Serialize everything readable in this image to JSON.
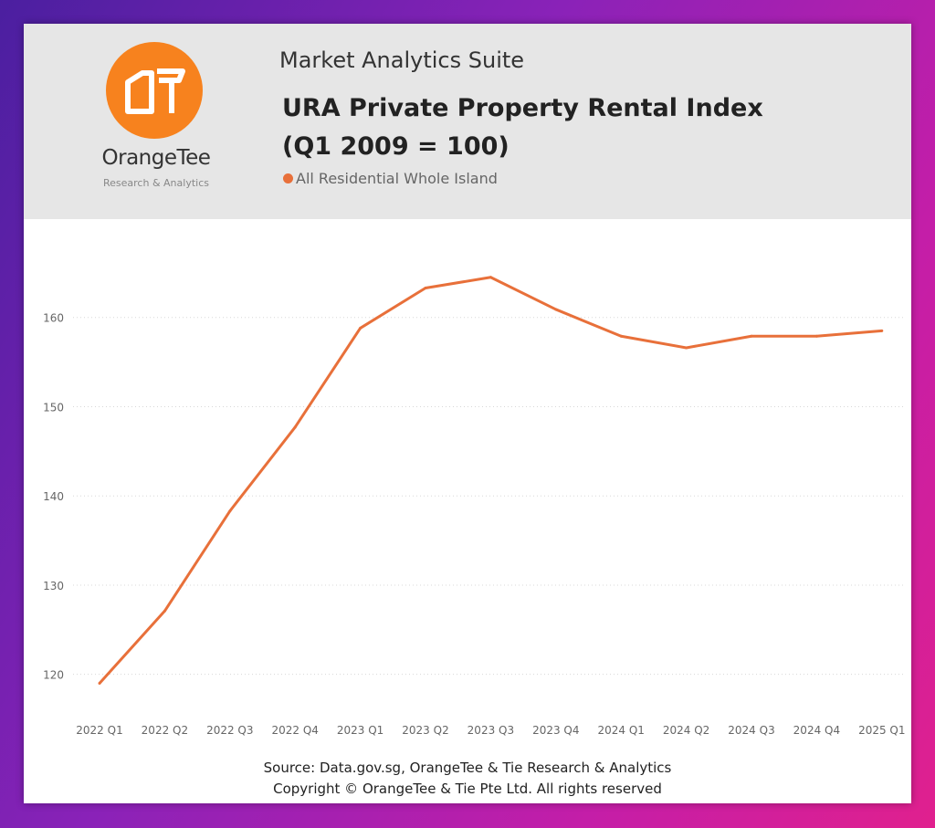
{
  "header": {
    "suite_title": "Market Analytics Suite",
    "title_line1": "URA Private Property Rental Index",
    "title_line2": "(Q1 2009 = 100)"
  },
  "logo": {
    "brand": "OrangeTee",
    "subtitle": "Research & Analytics",
    "mark": "OT",
    "color": "#f7821e"
  },
  "chart_data": {
    "type": "line",
    "title": "URA Private Property Rental Index (Q1 2009 = 100)",
    "xlabel": "",
    "ylabel": "",
    "categories": [
      "2022 Q1",
      "2022 Q2",
      "2022 Q3",
      "2022 Q4",
      "2023 Q1",
      "2023 Q2",
      "2023 Q3",
      "2023 Q4",
      "2024 Q1",
      "2024 Q2",
      "2024 Q3",
      "2024 Q4",
      "2025 Q1"
    ],
    "series": [
      {
        "name": "All Residential Whole Island",
        "color": "#e8703a",
        "values": [
          119.0,
          127.1,
          138.3,
          147.7,
          158.8,
          163.3,
          164.5,
          160.9,
          157.9,
          156.6,
          157.9,
          157.9,
          158.5
        ]
      }
    ],
    "yticks": [
      120,
      130,
      140,
      150,
      160
    ],
    "ylim": [
      117,
      170
    ],
    "grid": true,
    "legend_position": "top-left"
  },
  "footer": {
    "source": "Source: Data.gov.sg, OrangeTee & Tie Research & Analytics",
    "copyright": "Copyright © OrangeTee & Tie Pte Ltd. All rights reserved"
  }
}
